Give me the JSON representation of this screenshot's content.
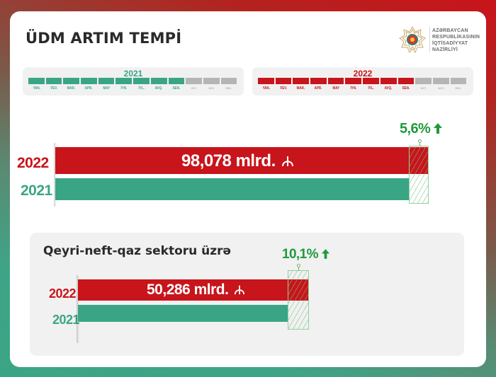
{
  "header": {
    "title": "ÜDM ARTIM TEMPİ",
    "logo": {
      "icon": "ministry-emblem-icon",
      "lines": [
        "AZƏRBAYCAN",
        "RESPUBLİKASININ",
        "İQTİSADİYYAT",
        "NAZİRLİYİ"
      ]
    }
  },
  "timelines": [
    {
      "year": "2021",
      "color": "#3aa585",
      "inactive_color": "#b5b5b5",
      "months": [
        "YAN.",
        "FEV.",
        "MAR.",
        "APR.",
        "MAY",
        "İYN.",
        "İYL.",
        "AVQ.",
        "SEN.",
        "OKT.",
        "NOY.",
        "DEK."
      ],
      "active_count": 9
    },
    {
      "year": "2022",
      "color": "#c8141b",
      "inactive_color": "#b5b5b5",
      "months": [
        "YAN.",
        "FEV.",
        "MAR.",
        "APR.",
        "MAY",
        "İYN.",
        "İYL.",
        "AVQ.",
        "SEN.",
        "OKT.",
        "NOY.",
        "DEK."
      ],
      "active_count": 9
    }
  ],
  "main_chart": {
    "label_2022": "2022",
    "label_2021": "2021",
    "value_label": "98,078 mlrd.",
    "currency_icon": "manat-icon",
    "growth": "5,6%",
    "growth_icon": "arrow-up-icon"
  },
  "sector_chart": {
    "title": "Qeyri-neft-qaz sektoru üzrə",
    "label_2022": "2022",
    "label_2021": "2021",
    "value_label": "50,286 mlrd.",
    "currency_icon": "manat-icon",
    "growth": "10,1%",
    "growth_icon": "arrow-up-icon"
  },
  "colors": {
    "red": "#c8141b",
    "green": "#3aa585",
    "growth_green": "#1f9a3c",
    "text_dark": "#2a2a2a"
  },
  "chart_data": [
    {
      "type": "bar",
      "orientation": "horizontal",
      "title": "ÜDM ARTIM TEMPİ",
      "period": "January–September",
      "categories": [
        "2022",
        "2021"
      ],
      "values": [
        98.078,
        92.877
      ],
      "unit": "mlrd. manat",
      "value_labels": [
        "98,078 mlrd. ₼",
        ""
      ],
      "annotation": "5,6% ↑",
      "growth_percent": 5.6
    },
    {
      "type": "bar",
      "orientation": "horizontal",
      "title": "Qeyri-neft-qaz sektoru üzrə",
      "period": "January–September",
      "categories": [
        "2022",
        "2021"
      ],
      "values": [
        50.286,
        45.673
      ],
      "unit": "mlrd. manat",
      "value_labels": [
        "50,286 mlrd. ₼",
        ""
      ],
      "annotation": "10,1% ↑",
      "growth_percent": 10.1
    }
  ]
}
